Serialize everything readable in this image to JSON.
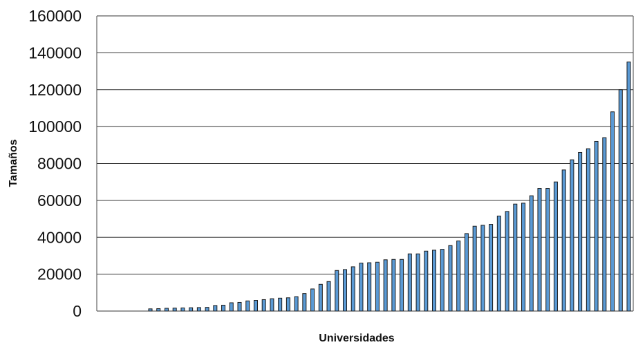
{
  "chart_data": {
    "type": "bar",
    "title": "",
    "xlabel": "Universidades",
    "ylabel": "Tamaños",
    "ylim": [
      0,
      160000
    ],
    "yticks": [
      0,
      20000,
      40000,
      60000,
      80000,
      100000,
      120000,
      140000,
      160000
    ],
    "ytick_labels": [
      "0",
      "20000",
      "40000",
      "60000",
      "80000",
      "100000",
      "120000",
      "140000",
      "160000"
    ],
    "grid": "horizontal",
    "legend": "none",
    "colors": {
      "bar_fill": "#5a9ad5",
      "bar_edge": "#1a1a1a",
      "grid": "#333333"
    },
    "values": [
      1200,
      1300,
      1500,
      1600,
      1700,
      1800,
      1900,
      2000,
      3000,
      3200,
      4500,
      4700,
      5500,
      5800,
      6200,
      6700,
      7000,
      7200,
      7800,
      9500,
      12000,
      14500,
      16000,
      22000,
      22500,
      24000,
      26000,
      26200,
      26500,
      27800,
      28000,
      28000,
      31000,
      31000,
      32500,
      33000,
      33500,
      35500,
      38000,
      42000,
      46000,
      46500,
      47000,
      51500,
      54000,
      58000,
      58500,
      62500,
      66500,
      66500,
      70000,
      76500,
      82000,
      86000,
      88000,
      92000,
      94000,
      108000,
      120000,
      135000
    ]
  }
}
